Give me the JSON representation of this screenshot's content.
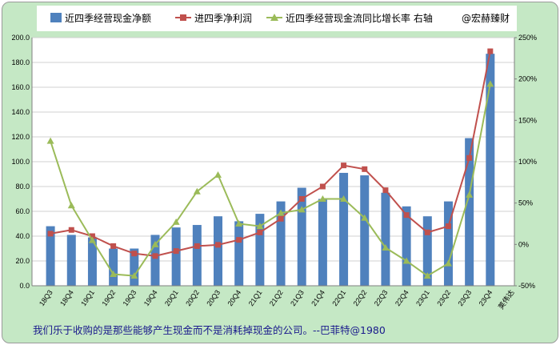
{
  "chart_data": {
    "type": "bar",
    "categories": [
      "18Q3",
      "18Q4",
      "19Q1",
      "19Q2",
      "19Q3",
      "19Q4",
      "20Q1",
      "20Q2",
      "20Q3",
      "20Q4",
      "21Q1",
      "21Q2",
      "21Q3",
      "21Q4",
      "22Q1",
      "22Q2",
      "22Q3",
      "22Q4",
      "23Q1",
      "23Q2",
      "23Q3",
      "23Q4"
    ],
    "series": [
      {
        "name": "近四季经营现金净额",
        "type": "bar",
        "axis": "left",
        "color": "#4f81bd",
        "values": [
          48,
          41,
          39,
          30,
          30,
          41,
          47,
          49,
          56,
          52,
          58,
          68,
          79,
          70,
          91,
          89,
          75,
          64,
          56,
          68,
          119,
          187
        ]
      },
      {
        "name": "进四季净利润",
        "type": "line",
        "axis": "left",
        "color": "#c0504d",
        "values": [
          42,
          45,
          40,
          32,
          26,
          24,
          28,
          32,
          33,
          37,
          43,
          54,
          70,
          80,
          97,
          94,
          77,
          57,
          43,
          48,
          103,
          189
        ]
      },
      {
        "name": "近四季经营现金流同比增长率 右轴",
        "type": "line",
        "axis": "right",
        "color": "#9bbb59",
        "values": [
          125,
          47,
          5,
          -36,
          -38,
          0,
          27,
          64,
          84,
          25,
          22,
          38,
          42,
          55,
          55,
          32,
          -4,
          -20,
          -38,
          -23,
          60,
          194
        ]
      }
    ],
    "y_left": {
      "min": 0,
      "max": 200,
      "step": 20,
      "ticks": [
        "0.0",
        "20.0",
        "40.0",
        "60.0",
        "80.0",
        "100.0",
        "120.0",
        "140.0",
        "160.0",
        "180.0",
        "200.0"
      ]
    },
    "y_right": {
      "min": -50,
      "max": 250,
      "step": 50,
      "ticks": [
        "-50%",
        "0%",
        "50%",
        "100%",
        "150%",
        "200%",
        "250%"
      ]
    },
    "legend_watermark": "@宏赫臻财",
    "author_label": "荚伟达",
    "grid": true
  },
  "footer": {
    "quote": "我们乐于收购的是那些能够产生现金而不是消耗掉现金的公司。--巴菲特@1980"
  }
}
